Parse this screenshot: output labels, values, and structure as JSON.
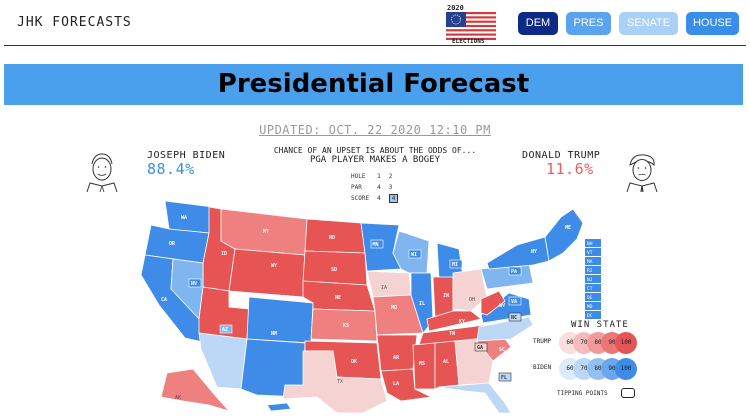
{
  "header": {
    "brand": "JHK FORECASTS",
    "logo_year": "2020",
    "logo_caption": "ELECTIONS",
    "nav": [
      {
        "label": "DEM"
      },
      {
        "label": "PRES"
      },
      {
        "label": "SENATE"
      },
      {
        "label": "HOUSE"
      }
    ]
  },
  "banner": {
    "title": "Presidential Forecast"
  },
  "updated": "UPDATED: OCT. 22 2020 12:10 PM",
  "candidates": {
    "biden": {
      "name": "JOSEPH BIDEN",
      "pct": "88.4%"
    },
    "trump": {
      "name": "DONALD TRUMP",
      "pct": "11.6%"
    }
  },
  "upset": {
    "line1": "CHANCE OF AN UPSET IS ABOUT THE ODDS OF...",
    "line2": "PGA PLAYER MAKES A BOGEY"
  },
  "scorecard": {
    "hole_label": "HOLE",
    "hole": [
      "1",
      "2"
    ],
    "par_label": "PAR",
    "par": [
      "4",
      "3"
    ],
    "score_label": "SCORE",
    "score": [
      "4",
      "4"
    ]
  },
  "map": {
    "states": [
      "WA",
      "OR",
      "CA",
      "MT",
      "ID",
      "NV",
      "WY",
      "UT",
      "AZ",
      "CO",
      "NM",
      "ND",
      "SD",
      "NE",
      "KS",
      "OK",
      "TX",
      "MN",
      "IA",
      "MO",
      "AR",
      "LA",
      "WI",
      "IL",
      "MI",
      "IN",
      "KY",
      "TN",
      "MS",
      "AL",
      "OH",
      "GA",
      "FL",
      "SC",
      "NC",
      "VA",
      "WV",
      "PA",
      "NY",
      "ME",
      "AK",
      "HI"
    ],
    "ne_states": [
      "NH",
      "VT",
      "MA",
      "RI",
      "NJ",
      "CT",
      "DE",
      "MD",
      "DC"
    ],
    "colors": {
      "safe_d": "#3f8ce8",
      "likely_d": "#80b6f0",
      "lean_d": "#bcd8f6",
      "safe_r": "#e65454",
      "likely_r": "#ee8080",
      "lean_r": "#f6d3d3"
    }
  },
  "legend": {
    "title": "WIN STATE",
    "trump_label": "TRUMP",
    "biden_label": "BIDEN",
    "levels": [
      "60",
      "70",
      "80",
      "90",
      "100"
    ],
    "trump_colors": [
      "#f8dede",
      "#f4bcbc",
      "#f09a9a",
      "#eb7878",
      "#e65555"
    ],
    "biden_colors": [
      "#dcebfb",
      "#bcd8f6",
      "#93c0f1",
      "#6aa8ec",
      "#3f8ce8"
    ],
    "tipping_label": "TIPPING POINTS"
  }
}
